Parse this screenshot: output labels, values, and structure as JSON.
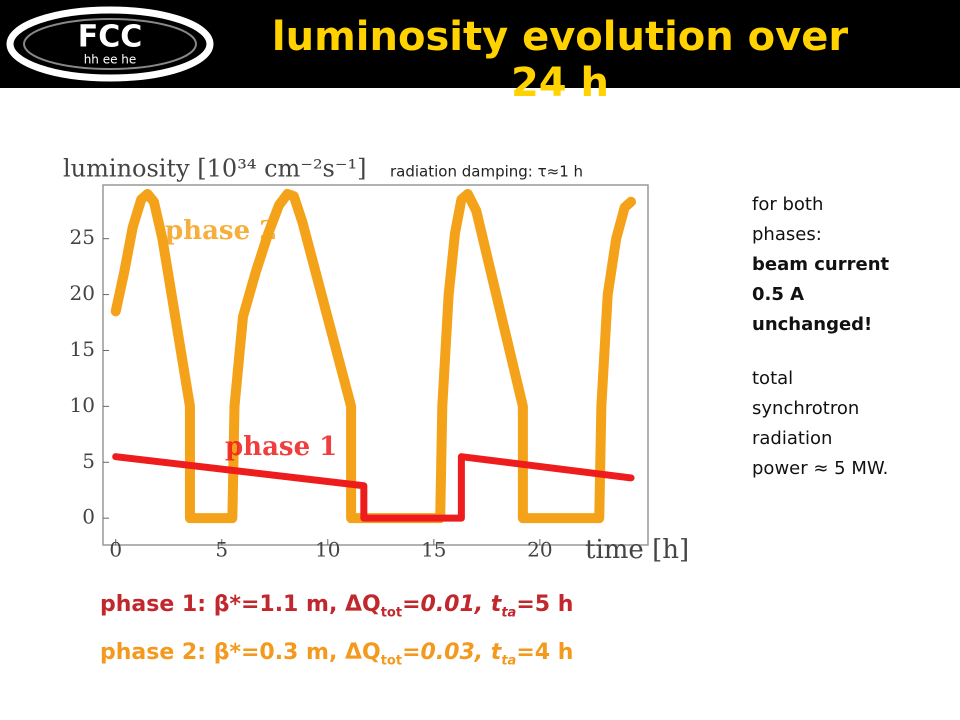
{
  "header": {
    "logo": "FCC",
    "logo_sub": "hh ee he",
    "title": "luminosity evolution over 24 h"
  },
  "chart_data": {
    "type": "line",
    "y_label": "luminosity [10³⁴ cm⁻²s⁻¹]",
    "x_label": "time [h]",
    "annotation": "radiation damping: τ≈1 h",
    "xlim": [
      -0.6,
      25.1
    ],
    "ylim": [
      -2.4,
      29.8
    ],
    "xticks": [
      0,
      5,
      10,
      15,
      20
    ],
    "yticks": [
      0,
      5,
      10,
      15,
      20,
      25
    ],
    "series": [
      {
        "name": "phase 2",
        "color": "#f5a21b",
        "x": [
          0,
          0.4,
          0.8,
          1.2,
          1.5,
          1.8,
          2.2,
          3.5,
          3.5,
          5.5,
          5.6,
          6.0,
          6.6,
          7.2,
          7.7,
          8.1,
          8.4,
          8.8,
          11.1,
          11.1,
          15.3,
          15.4,
          15.7,
          16.0,
          16.3,
          16.6,
          17.0,
          19.2,
          19.2,
          22.8,
          22.9,
          23.2,
          23.6,
          24.0,
          24.3
        ],
        "values": [
          18.5,
          22,
          26,
          28.5,
          29,
          28.3,
          25,
          10,
          0,
          0,
          10,
          18,
          22,
          25.5,
          28,
          29,
          28.8,
          26.5,
          10,
          0,
          0,
          10,
          20,
          25.5,
          28.5,
          29,
          27.5,
          10,
          0,
          0,
          10,
          20,
          25,
          27.8,
          28.3
        ]
      },
      {
        "name": "phase 1",
        "color": "#ee1c1c",
        "x": [
          0,
          11.7,
          11.7,
          16.3,
          16.3,
          24.3
        ],
        "values": [
          5.5,
          2.9,
          0,
          0,
          5.5,
          3.6
        ]
      }
    ]
  },
  "side_note": [
    "for both",
    "phases:",
    "beam current",
    "0.5 A",
    "unchanged!",
    "total",
    "synchrotron",
    "radiation",
    "power ≈ 5 MW."
  ],
  "captions": [
    [
      "phase 1: ",
      "β*=1.1 m, ΔQ",
      "tot",
      "=0.01, t",
      "ta",
      "=5 h"
    ],
    [
      "phase 2: ",
      "β*=0.3 m, ΔQ",
      "tot",
      "=0.03, t",
      "ta",
      "=4 h"
    ]
  ]
}
